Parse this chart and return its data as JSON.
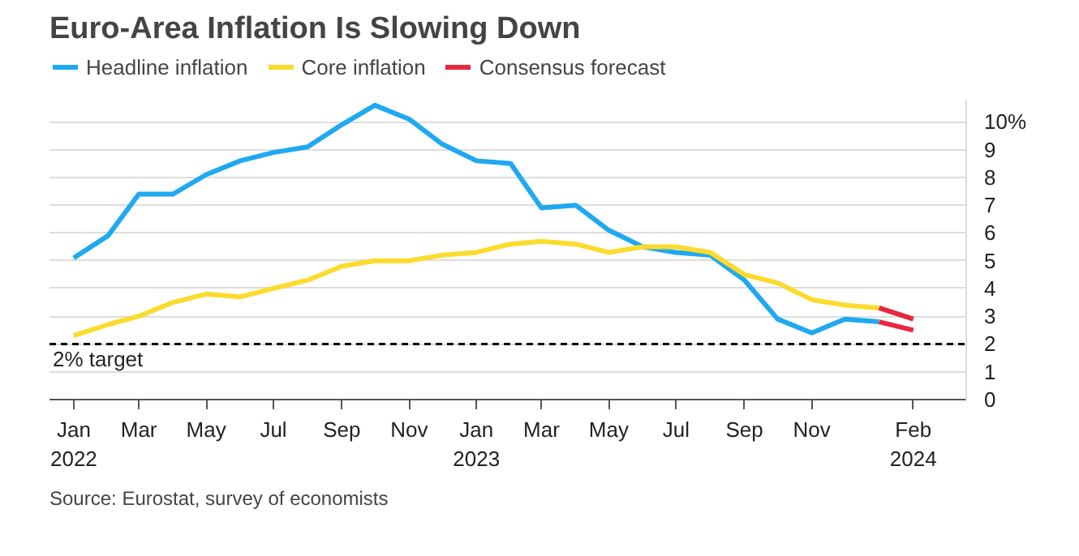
{
  "chart_data": {
    "type": "line",
    "title": "Euro-Area Inflation Is Slowing Down",
    "x": [
      "2022-01",
      "2022-02",
      "2022-03",
      "2022-04",
      "2022-05",
      "2022-06",
      "2022-07",
      "2022-08",
      "2022-09",
      "2022-10",
      "2022-11",
      "2022-12",
      "2023-01",
      "2023-02",
      "2023-03",
      "2023-04",
      "2023-05",
      "2023-06",
      "2023-07",
      "2023-08",
      "2023-09",
      "2023-10",
      "2023-11",
      "2023-12",
      "2024-01"
    ],
    "series": [
      {
        "name": "Headline inflation",
        "color": "#1fa9f0",
        "values": [
          5.1,
          5.9,
          7.4,
          7.4,
          8.1,
          8.6,
          8.9,
          9.1,
          9.9,
          10.6,
          10.1,
          9.2,
          8.6,
          8.5,
          6.9,
          7.0,
          6.1,
          5.5,
          5.3,
          5.2,
          4.3,
          2.9,
          2.4,
          2.9,
          2.8
        ]
      },
      {
        "name": "Core inflation",
        "color": "#fbdc2e",
        "values": [
          2.3,
          2.7,
          3.0,
          3.5,
          3.8,
          3.7,
          4.0,
          4.3,
          4.8,
          5.0,
          5.0,
          5.2,
          5.3,
          5.6,
          5.7,
          5.6,
          5.3,
          5.5,
          5.5,
          5.3,
          4.5,
          4.2,
          3.6,
          3.4,
          3.3
        ]
      },
      {
        "name": "Consensus forecast",
        "color": "#e8283c",
        "x": [
          "2024-01",
          "2024-02"
        ],
        "values": [
          3.3,
          2.9
        ]
      },
      {
        "color": "#e8283c",
        "x": [
          "2024-01",
          "2024-02"
        ],
        "values": [
          2.8,
          2.5
        ]
      }
    ],
    "xlim": [
      "2021-12-10",
      "2024-03-20"
    ],
    "xticks": [
      {
        "value": "2022-01",
        "label": "Jan\n2022"
      },
      {
        "value": "2022-03",
        "label": "Mar"
      },
      {
        "value": "2022-05",
        "label": "May"
      },
      {
        "value": "2022-07",
        "label": "Jul"
      },
      {
        "value": "2022-09",
        "label": "Sep"
      },
      {
        "value": "2022-11",
        "label": "Nov"
      },
      {
        "value": "2023-01",
        "label": "Jan\n2023"
      },
      {
        "value": "2023-03",
        "label": "Mar"
      },
      {
        "value": "2023-05",
        "label": "May"
      },
      {
        "value": "2023-07",
        "label": "Jul"
      },
      {
        "value": "2023-09",
        "label": "Sep"
      },
      {
        "value": "2023-11",
        "label": "Nov"
      },
      {
        "value": "2024-02",
        "label": "Feb\n2024"
      }
    ],
    "ylim": [
      0,
      10.8
    ],
    "yticks": [
      0,
      1,
      2,
      3,
      4,
      5,
      6,
      7,
      8,
      9,
      {
        "value": 10,
        "label": "10%"
      }
    ],
    "grid": "y",
    "legend": "top left",
    "ref_lines": [
      {
        "axis": "y",
        "value": 2,
        "label": "2% target",
        "color": "#000000",
        "line_style": "dashed"
      }
    ],
    "annotations": [
      "Source: Eurostat, survey of economists"
    ]
  }
}
